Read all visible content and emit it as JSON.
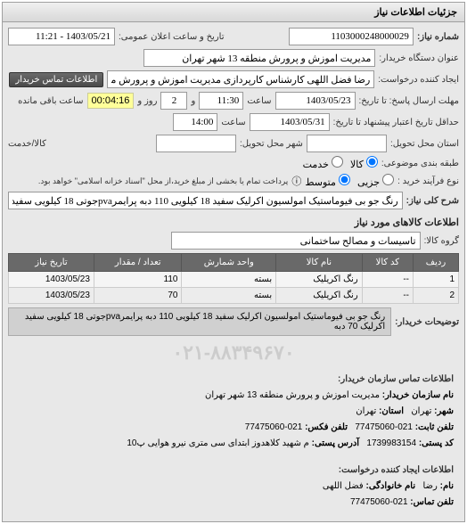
{
  "panel": {
    "title": "جزئیات اطلاعات نیاز"
  },
  "header": {
    "need_no_label": "شماره نیاز:",
    "need_no": "1103000248000029",
    "pub_date_label": "تاریخ و ساعت اعلان عمومی:",
    "pub_date": "1403/05/21 - 11:21",
    "buyer_title_label": "عنوان دستگاه خریدار:",
    "buyer_title": "مدیریت اموزش و پرورش منطقه 13 شهر تهران",
    "creator_label": "ایجاد کننده درخواست:",
    "creator": "رضا فضل اللهی کارشناس کارپردازی مدیریت اموزش و پرورش منطقه 13 شهر ته",
    "buyer_contact_btn": "اطلاعات تماس خریدار"
  },
  "deadlines": {
    "response_until_label": "مهلت ارسال پاسخ: تا تاریخ:",
    "response_until_date": "1403/05/23",
    "response_until_time_label": "ساعت",
    "response_until_time": "11:30",
    "and_label": "و",
    "remaining_days": "2",
    "days_label": "روز و",
    "countdown": "00:04:16",
    "remaining_label": "ساعت باقی مانده",
    "validity_label": "حداقل تاریخ اعتبار پیشنهاد تا تاریخ:",
    "validity_date": "1403/05/31",
    "validity_time_label": "ساعت",
    "validity_time": "14:00"
  },
  "location": {
    "province_label": "استان محل تحویل:",
    "province": "",
    "city_label": "شهر محل تحویل:",
    "city": "",
    "item_or_item_label": "کالا/خدمت"
  },
  "subject_radio": {
    "label": "طبقه بندی موضوعی:",
    "opt_goods": "کالا",
    "opt_service": "خدمت",
    "selected": "goods"
  },
  "buy_type_radio": {
    "label": "نوع فرآیند خرید :",
    "opt_minor": "جزیی",
    "opt_medium": "متوسط",
    "selected": "medium",
    "note_icon": "ⓘ",
    "note": "پرداخت تمام یا بخشی از مبلغ خرید،از محل \"اسناد خزانه اسلامی\" خواهد بود."
  },
  "need_title": {
    "label": "شرح کلی نیاز:",
    "value": "رنگ جو بی فیوماستیک امولسیون اکرلیک سفید 18 کیلویی 110 دبه پرایمرpvaجوتی 18 کیلویی سفید اکرلیک 70 دبه"
  },
  "goods_section": {
    "title": "اطلاعات کالاهای مورد نیاز",
    "group_label": "گروه کالا:",
    "group_value": "تاسیسات و مصالح ساختمانی"
  },
  "table": {
    "columns": [
      "ردیف",
      "کد کالا",
      "نام کالا",
      "واحد شمارش",
      "تعداد / مقدار",
      "تاریخ نیاز"
    ],
    "rows": [
      [
        "1",
        "--",
        "رنگ اکریلیک",
        "بسته",
        "110",
        "1403/05/23"
      ],
      [
        "2",
        "--",
        "رنگ اکریلیک",
        "بسته",
        "70",
        "1403/05/23"
      ]
    ]
  },
  "buyer_desc": {
    "label": "توضیحات خریدار:",
    "value": "رنگ جو بی فیوماستیک امولسیون اکرلیک سفید 18 کیلویی 110 دبه پرایمرpvaجوتی 18 کیلویی سفید اکرلیک 70 دبه"
  },
  "watermark": "۰۲۱-۸۸۳۴۹۶۷۰",
  "contact_hdr": "اطلاعات تماس سازمان خریدار:",
  "contact": {
    "org_label": "نام سازمان خریدار:",
    "org": "مدیریت اموزش و پرورش منطقه 13 شهر تهران",
    "city_label": "شهر:",
    "city": "تهران",
    "province_label": "استان:",
    "province": "تهران",
    "phone_label": "تلفن ثابت:",
    "phone": "021-77475060",
    "fax_label": "تلفن فکس:",
    "fax": "021-77475060",
    "postal_label": "کد پستی:",
    "postal": "1739983154",
    "address_label": "آدرس پستی:",
    "address": "م شهید کلاهدوز ابتدای سی متری نیرو هوایی پ10"
  },
  "creator_hdr": "اطلاعات ایجاد کننده درخواست:",
  "creator_info": {
    "first_label": "نام:",
    "first": "رضا",
    "last_label": "نام خانوادگی:",
    "last": "فضل اللهی",
    "phone_label": "تلفن تماس:",
    "phone": "021-77475060"
  }
}
